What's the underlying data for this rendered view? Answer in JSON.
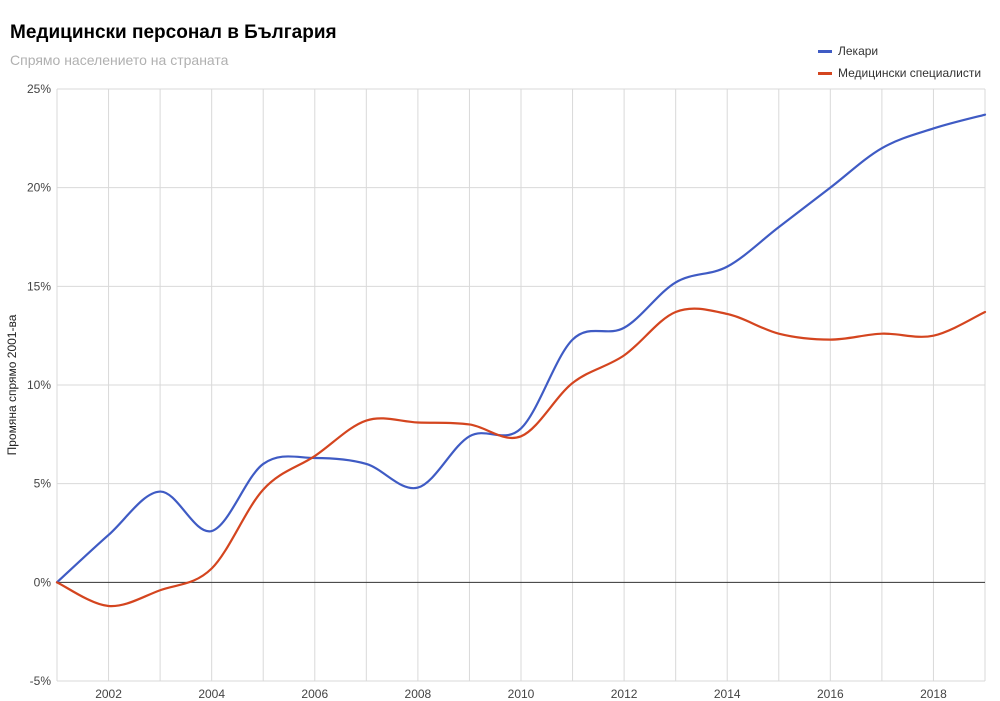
{
  "chart_data": {
    "type": "line",
    "title": "Медицински персонал в България",
    "subtitle": "Спрямо населението на страната",
    "ylabel": "Промяна спрямо 2001-ва",
    "xlabel": "",
    "x": [
      2001,
      2002,
      2003,
      2004,
      2005,
      2006,
      2007,
      2008,
      2009,
      2010,
      2011,
      2012,
      2013,
      2014,
      2015,
      2016,
      2017,
      2018,
      2019
    ],
    "xlim": [
      2001,
      2019
    ],
    "x_ticks": [
      2002,
      2004,
      2006,
      2008,
      2010,
      2012,
      2014,
      2016,
      2018
    ],
    "ylim": [
      -5,
      25
    ],
    "y_ticks": [
      -5,
      0,
      5,
      10,
      15,
      20,
      25
    ],
    "y_tick_labels": [
      "-5%",
      "0%",
      "5%",
      "10%",
      "15%",
      "20%",
      "25%"
    ],
    "legend_position": "top-right",
    "grid": true,
    "series": [
      {
        "name": "Лекари",
        "color": "#3f5bc4",
        "values": [
          0,
          2.4,
          4.6,
          2.6,
          6.0,
          6.3,
          6.0,
          4.8,
          7.4,
          7.8,
          12.3,
          12.9,
          15.2,
          16.0,
          18.0,
          20.0,
          22.0,
          23.0,
          23.7
        ]
      },
      {
        "name": "Медицински специалисти",
        "color": "#d4451f",
        "values": [
          0,
          -1.2,
          -0.4,
          0.7,
          4.7,
          6.4,
          8.2,
          8.1,
          8.0,
          7.4,
          10.1,
          11.5,
          13.7,
          13.6,
          12.6,
          12.3,
          12.6,
          12.5,
          13.7
        ]
      }
    ]
  }
}
